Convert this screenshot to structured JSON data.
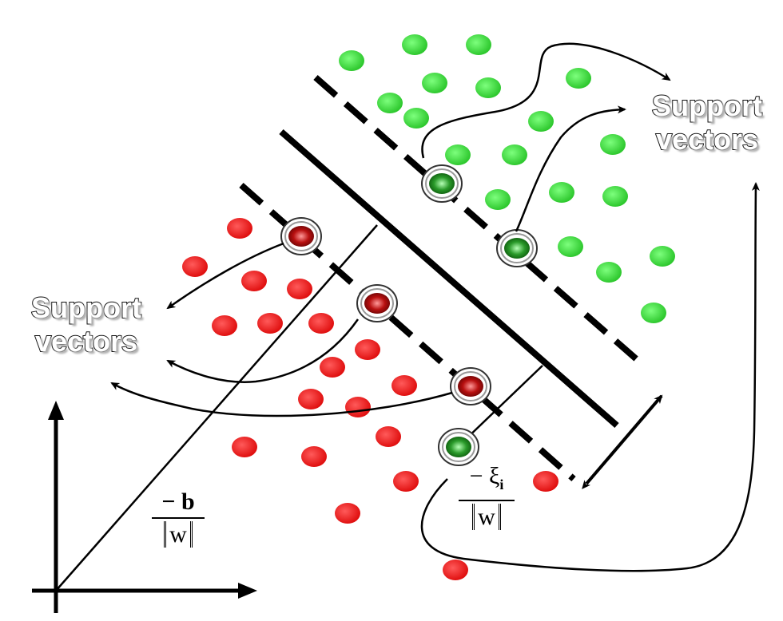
{
  "labels": {
    "support_vectors_right_line1": "Support",
    "support_vectors_right_line2": "vectors",
    "support_vectors_left_line1": "Support",
    "support_vectors_left_line2": "vectors"
  },
  "formulas": {
    "offset_numerator": "− b",
    "offset_denominator": "w",
    "slack_numerator": "− ξ",
    "slack_subscript": "i",
    "slack_denominator": "w"
  },
  "colors": {
    "class_positive": "#22e022",
    "class_negative": "#ee1111",
    "lines": "#000000",
    "background": "#ffffff"
  }
}
